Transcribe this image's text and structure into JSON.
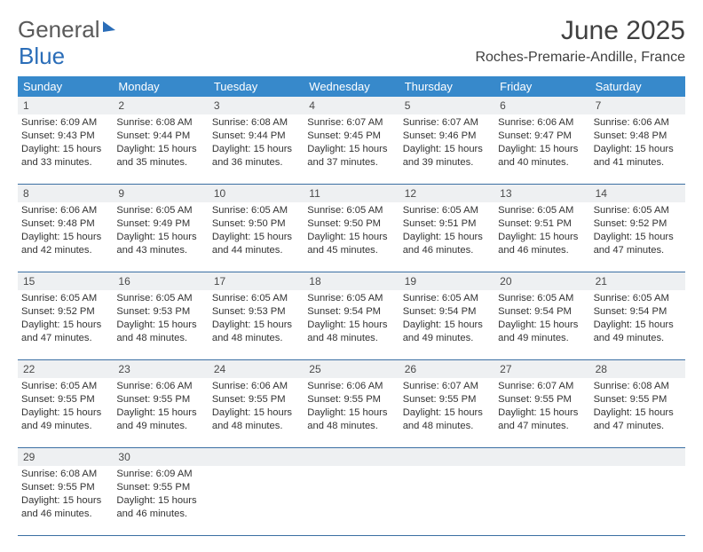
{
  "brand": {
    "part1": "General",
    "part2": "Blue"
  },
  "title": "June 2025",
  "subtitle": "Roches-Premarie-Andille, France",
  "colors": {
    "header_bg": "#3789cb",
    "header_text": "#ffffff",
    "daynum_bg": "#eef0f2",
    "rule": "#3b6fa3",
    "body_text": "#333333"
  },
  "day_headers": [
    "Sunday",
    "Monday",
    "Tuesday",
    "Wednesday",
    "Thursday",
    "Friday",
    "Saturday"
  ],
  "weeks": [
    [
      {
        "n": "1",
        "sr": "Sunrise: 6:09 AM",
        "ss": "Sunset: 9:43 PM",
        "d1": "Daylight: 15 hours",
        "d2": "and 33 minutes."
      },
      {
        "n": "2",
        "sr": "Sunrise: 6:08 AM",
        "ss": "Sunset: 9:44 PM",
        "d1": "Daylight: 15 hours",
        "d2": "and 35 minutes."
      },
      {
        "n": "3",
        "sr": "Sunrise: 6:08 AM",
        "ss": "Sunset: 9:44 PM",
        "d1": "Daylight: 15 hours",
        "d2": "and 36 minutes."
      },
      {
        "n": "4",
        "sr": "Sunrise: 6:07 AM",
        "ss": "Sunset: 9:45 PM",
        "d1": "Daylight: 15 hours",
        "d2": "and 37 minutes."
      },
      {
        "n": "5",
        "sr": "Sunrise: 6:07 AM",
        "ss": "Sunset: 9:46 PM",
        "d1": "Daylight: 15 hours",
        "d2": "and 39 minutes."
      },
      {
        "n": "6",
        "sr": "Sunrise: 6:06 AM",
        "ss": "Sunset: 9:47 PM",
        "d1": "Daylight: 15 hours",
        "d2": "and 40 minutes."
      },
      {
        "n": "7",
        "sr": "Sunrise: 6:06 AM",
        "ss": "Sunset: 9:48 PM",
        "d1": "Daylight: 15 hours",
        "d2": "and 41 minutes."
      }
    ],
    [
      {
        "n": "8",
        "sr": "Sunrise: 6:06 AM",
        "ss": "Sunset: 9:48 PM",
        "d1": "Daylight: 15 hours",
        "d2": "and 42 minutes."
      },
      {
        "n": "9",
        "sr": "Sunrise: 6:05 AM",
        "ss": "Sunset: 9:49 PM",
        "d1": "Daylight: 15 hours",
        "d2": "and 43 minutes."
      },
      {
        "n": "10",
        "sr": "Sunrise: 6:05 AM",
        "ss": "Sunset: 9:50 PM",
        "d1": "Daylight: 15 hours",
        "d2": "and 44 minutes."
      },
      {
        "n": "11",
        "sr": "Sunrise: 6:05 AM",
        "ss": "Sunset: 9:50 PM",
        "d1": "Daylight: 15 hours",
        "d2": "and 45 minutes."
      },
      {
        "n": "12",
        "sr": "Sunrise: 6:05 AM",
        "ss": "Sunset: 9:51 PM",
        "d1": "Daylight: 15 hours",
        "d2": "and 46 minutes."
      },
      {
        "n": "13",
        "sr": "Sunrise: 6:05 AM",
        "ss": "Sunset: 9:51 PM",
        "d1": "Daylight: 15 hours",
        "d2": "and 46 minutes."
      },
      {
        "n": "14",
        "sr": "Sunrise: 6:05 AM",
        "ss": "Sunset: 9:52 PM",
        "d1": "Daylight: 15 hours",
        "d2": "and 47 minutes."
      }
    ],
    [
      {
        "n": "15",
        "sr": "Sunrise: 6:05 AM",
        "ss": "Sunset: 9:52 PM",
        "d1": "Daylight: 15 hours",
        "d2": "and 47 minutes."
      },
      {
        "n": "16",
        "sr": "Sunrise: 6:05 AM",
        "ss": "Sunset: 9:53 PM",
        "d1": "Daylight: 15 hours",
        "d2": "and 48 minutes."
      },
      {
        "n": "17",
        "sr": "Sunrise: 6:05 AM",
        "ss": "Sunset: 9:53 PM",
        "d1": "Daylight: 15 hours",
        "d2": "and 48 minutes."
      },
      {
        "n": "18",
        "sr": "Sunrise: 6:05 AM",
        "ss": "Sunset: 9:54 PM",
        "d1": "Daylight: 15 hours",
        "d2": "and 48 minutes."
      },
      {
        "n": "19",
        "sr": "Sunrise: 6:05 AM",
        "ss": "Sunset: 9:54 PM",
        "d1": "Daylight: 15 hours",
        "d2": "and 49 minutes."
      },
      {
        "n": "20",
        "sr": "Sunrise: 6:05 AM",
        "ss": "Sunset: 9:54 PM",
        "d1": "Daylight: 15 hours",
        "d2": "and 49 minutes."
      },
      {
        "n": "21",
        "sr": "Sunrise: 6:05 AM",
        "ss": "Sunset: 9:54 PM",
        "d1": "Daylight: 15 hours",
        "d2": "and 49 minutes."
      }
    ],
    [
      {
        "n": "22",
        "sr": "Sunrise: 6:05 AM",
        "ss": "Sunset: 9:55 PM",
        "d1": "Daylight: 15 hours",
        "d2": "and 49 minutes."
      },
      {
        "n": "23",
        "sr": "Sunrise: 6:06 AM",
        "ss": "Sunset: 9:55 PM",
        "d1": "Daylight: 15 hours",
        "d2": "and 49 minutes."
      },
      {
        "n": "24",
        "sr": "Sunrise: 6:06 AM",
        "ss": "Sunset: 9:55 PM",
        "d1": "Daylight: 15 hours",
        "d2": "and 48 minutes."
      },
      {
        "n": "25",
        "sr": "Sunrise: 6:06 AM",
        "ss": "Sunset: 9:55 PM",
        "d1": "Daylight: 15 hours",
        "d2": "and 48 minutes."
      },
      {
        "n": "26",
        "sr": "Sunrise: 6:07 AM",
        "ss": "Sunset: 9:55 PM",
        "d1": "Daylight: 15 hours",
        "d2": "and 48 minutes."
      },
      {
        "n": "27",
        "sr": "Sunrise: 6:07 AM",
        "ss": "Sunset: 9:55 PM",
        "d1": "Daylight: 15 hours",
        "d2": "and 47 minutes."
      },
      {
        "n": "28",
        "sr": "Sunrise: 6:08 AM",
        "ss": "Sunset: 9:55 PM",
        "d1": "Daylight: 15 hours",
        "d2": "and 47 minutes."
      }
    ],
    [
      {
        "n": "29",
        "sr": "Sunrise: 6:08 AM",
        "ss": "Sunset: 9:55 PM",
        "d1": "Daylight: 15 hours",
        "d2": "and 46 minutes."
      },
      {
        "n": "30",
        "sr": "Sunrise: 6:09 AM",
        "ss": "Sunset: 9:55 PM",
        "d1": "Daylight: 15 hours",
        "d2": "and 46 minutes."
      },
      {
        "n": "",
        "sr": "",
        "ss": "",
        "d1": "",
        "d2": ""
      },
      {
        "n": "",
        "sr": "",
        "ss": "",
        "d1": "",
        "d2": ""
      },
      {
        "n": "",
        "sr": "",
        "ss": "",
        "d1": "",
        "d2": ""
      },
      {
        "n": "",
        "sr": "",
        "ss": "",
        "d1": "",
        "d2": ""
      },
      {
        "n": "",
        "sr": "",
        "ss": "",
        "d1": "",
        "d2": ""
      }
    ]
  ]
}
